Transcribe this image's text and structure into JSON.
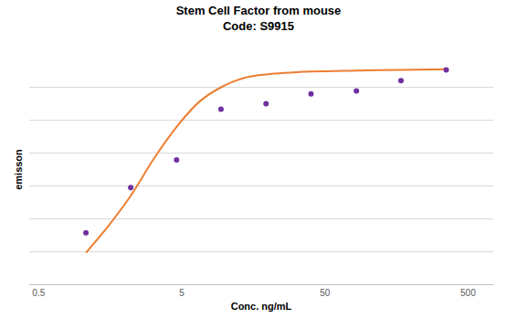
{
  "chart_data": {
    "type": "scatter",
    "title": "Stem Cell Factor from mouse\nCode: S9915",
    "x_label": "Conc. ng/mL",
    "y_label": "emisson",
    "log": "x",
    "grid": true,
    "tick_labels": "x",
    "xlim": [
      0.43,
      750
    ],
    "xticks": [
      0.5,
      5,
      50,
      500
    ],
    "ylim": [
      0,
      7
    ],
    "yticks": [
      0,
      1,
      2,
      3,
      4,
      5,
      6,
      7
    ],
    "series": [
      {
        "type": "line",
        "color": "#ed7d31",
        "line_style": "solid",
        "x": [
          1.07,
          1.53,
          2.2,
          3.18,
          4.6,
          6.6,
          9.4,
          13.5,
          19.4,
          40,
          83,
          170,
          352
        ],
        "values": [
          0.96,
          1.77,
          2.7,
          3.82,
          4.8,
          5.56,
          6.01,
          6.29,
          6.4,
          6.49,
          6.52,
          6.54,
          6.56
        ]
      },
      {
        "type": "scatter",
        "color": "#7030a0",
        "marker": "circle",
        "x": [
          1.07,
          2.2,
          4.6,
          9.4,
          19.4,
          40,
          83,
          170,
          352
        ],
        "values": [
          1.57,
          2.95,
          3.79,
          5.34,
          5.51,
          5.81,
          5.9,
          6.21,
          6.54
        ]
      }
    ]
  }
}
